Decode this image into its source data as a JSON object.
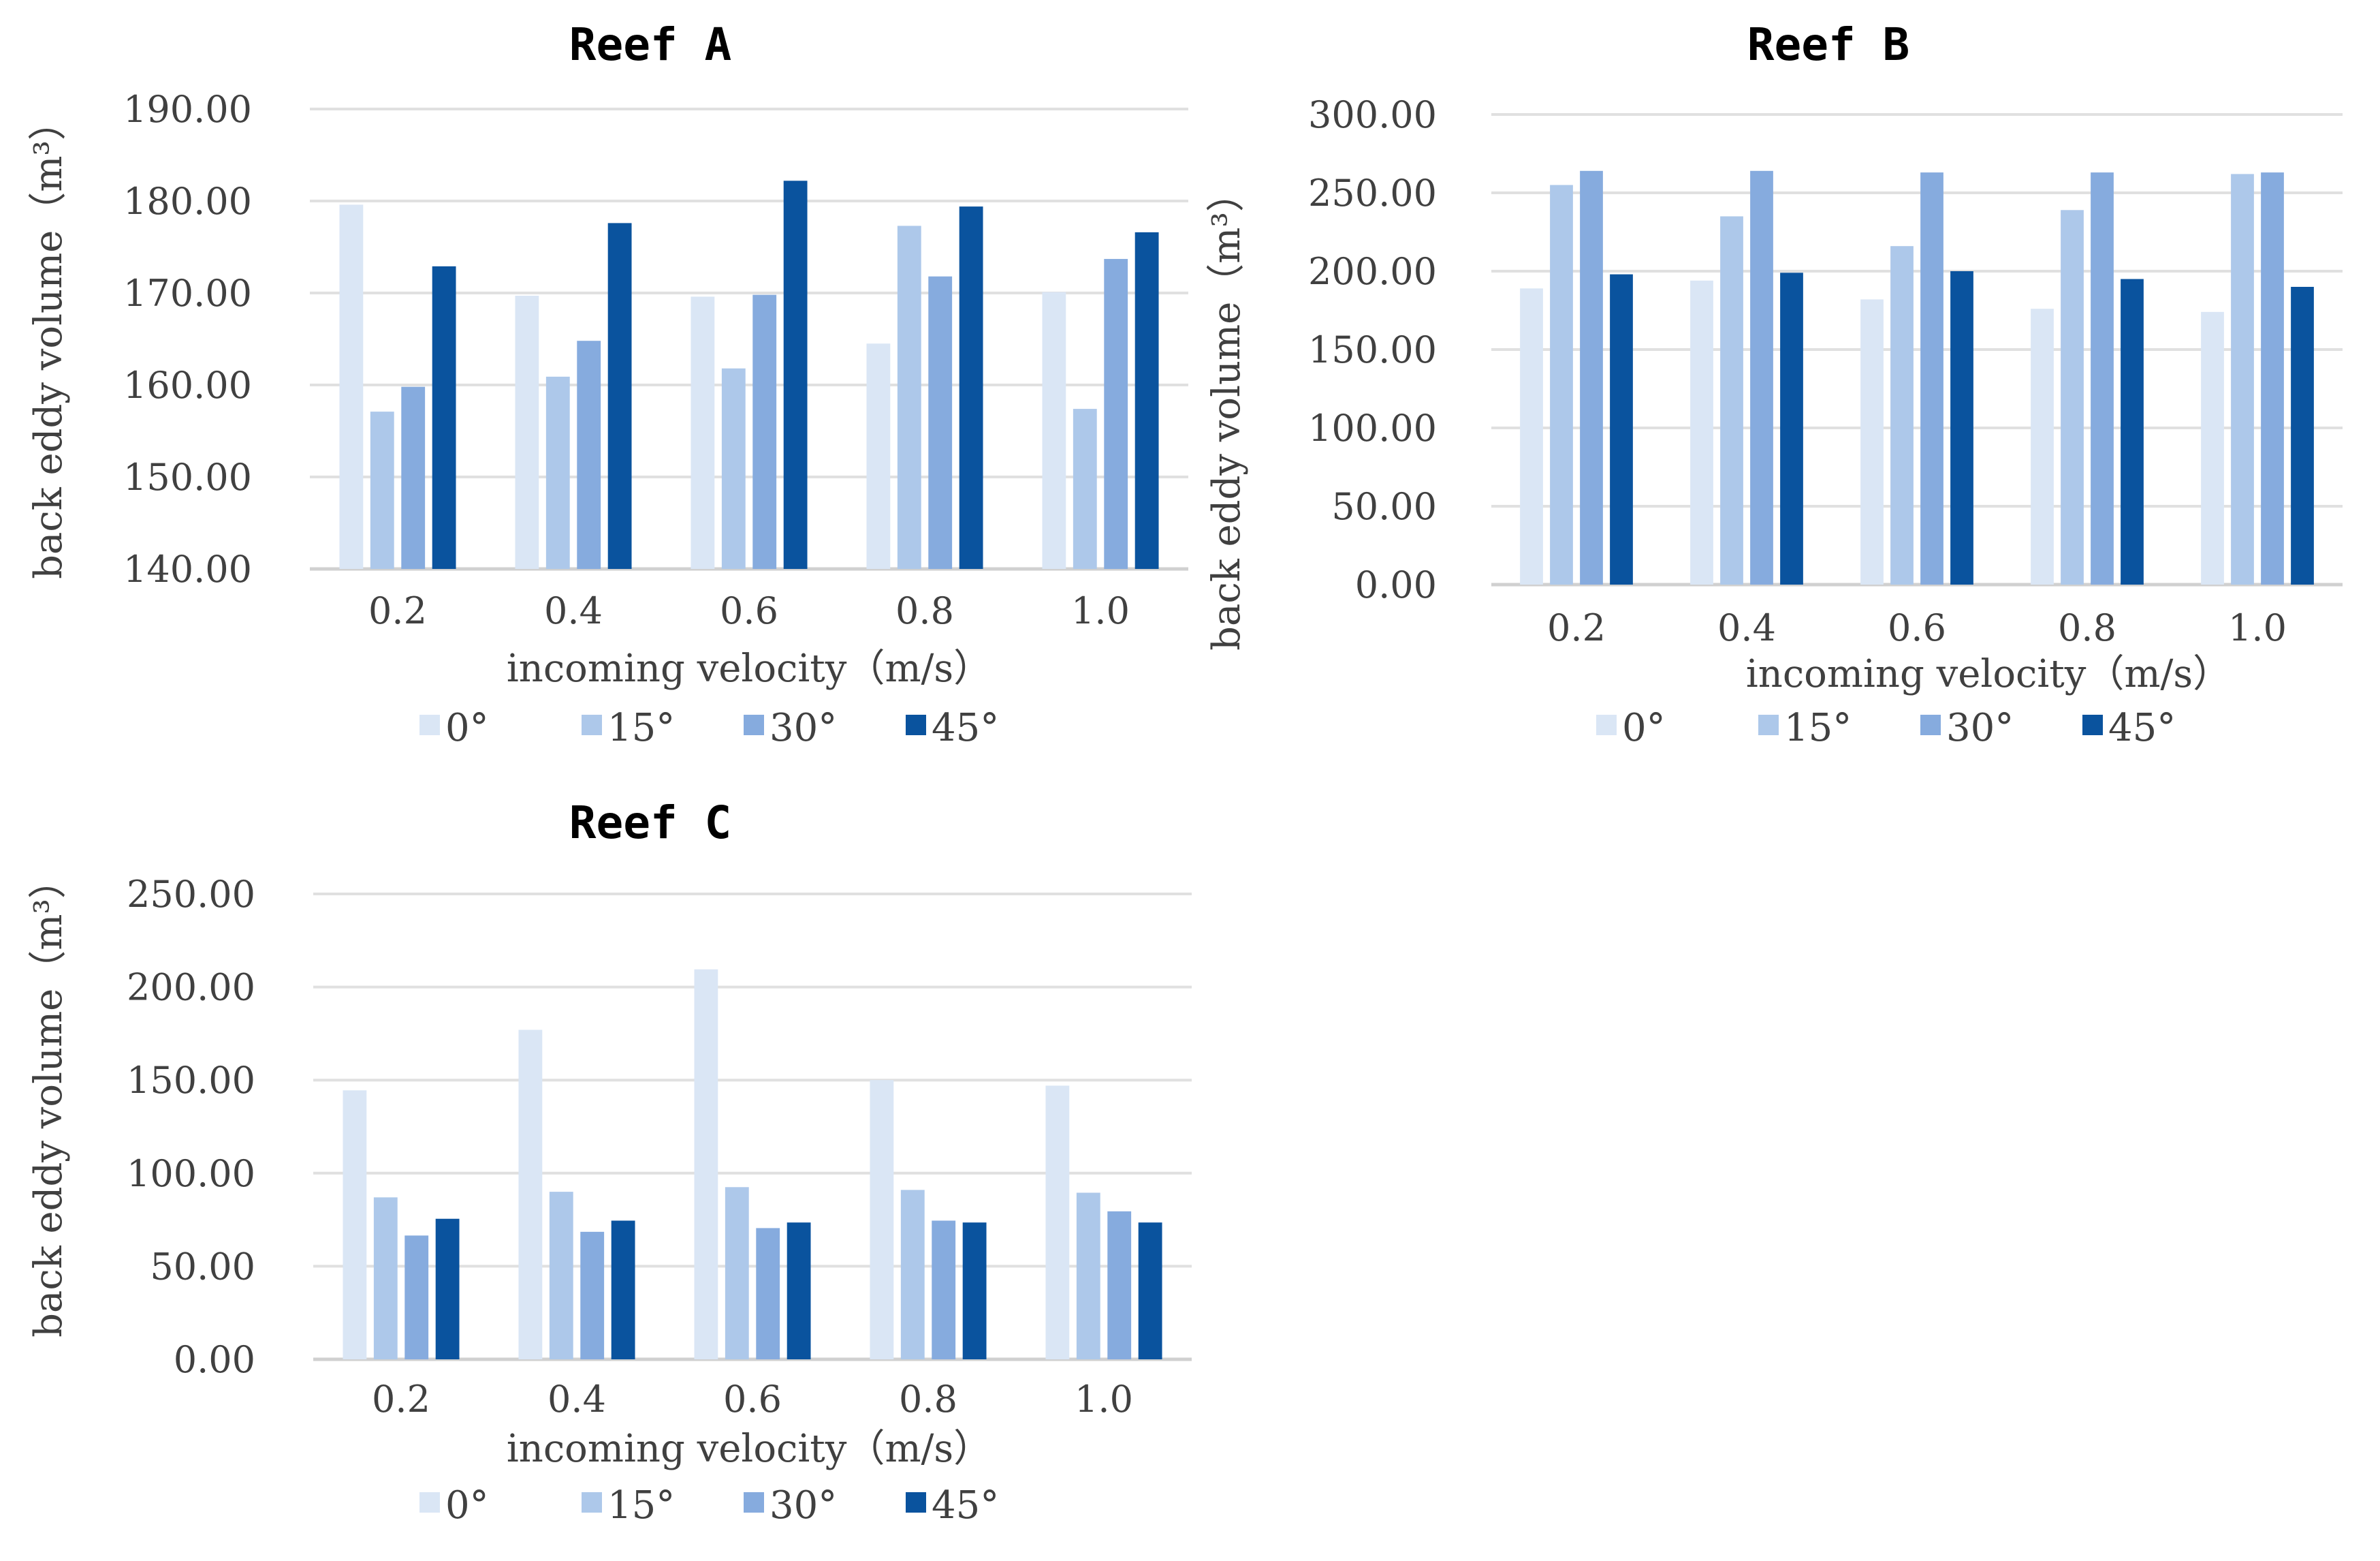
{
  "series_colors": [
    "#dae6f5",
    "#adc8ea",
    "#86abde",
    "#0a539e"
  ],
  "chart_data": [
    {
      "type": "bar",
      "title": "Reef A",
      "xlabel": "incoming velocity（m/s）",
      "ylabel": "back eddy volume（m³）",
      "categories": [
        "0.2",
        "0.4",
        "0.6",
        "0.8",
        "1.0"
      ],
      "ylim": [
        140,
        190
      ],
      "yticks": [
        "140.00",
        "150.00",
        "160.00",
        "170.00",
        "180.00",
        "190.00"
      ],
      "legend_position": "bottom",
      "grid": true,
      "series": [
        {
          "name": "0°",
          "values": [
            179.6,
            169.7,
            169.6,
            164.5,
            170.1
          ]
        },
        {
          "name": "15°",
          "values": [
            157.1,
            160.9,
            161.8,
            177.3,
            157.4
          ]
        },
        {
          "name": "30°",
          "values": [
            159.8,
            164.8,
            169.8,
            171.8,
            173.7
          ]
        },
        {
          "name": "45°",
          "values": [
            172.9,
            177.6,
            182.2,
            179.4,
            176.6
          ]
        }
      ]
    },
    {
      "type": "bar",
      "title": "Reef B",
      "xlabel": "incoming velocity（m/s）",
      "ylabel": "back eddy volume（m³）",
      "categories": [
        "0.2",
        "0.4",
        "0.6",
        "0.8",
        "1.0"
      ],
      "ylim": [
        0,
        300
      ],
      "yticks": [
        "0.00",
        "50.00",
        "100.00",
        "150.00",
        "200.00",
        "250.00",
        "300.00"
      ],
      "legend_position": "bottom",
      "grid": true,
      "series": [
        {
          "name": "0°",
          "values": [
            189,
            194,
            182,
            176,
            174
          ]
        },
        {
          "name": "15°",
          "values": [
            255,
            235,
            216,
            239,
            262
          ]
        },
        {
          "name": "30°",
          "values": [
            264,
            264,
            263,
            263,
            263
          ]
        },
        {
          "name": "45°",
          "values": [
            198,
            199,
            200,
            195,
            190
          ]
        }
      ]
    },
    {
      "type": "bar",
      "title": "Reef C",
      "xlabel": "incoming velocity（m/s）",
      "ylabel": "back eddy volume（m³）",
      "categories": [
        "0.2",
        "0.4",
        "0.6",
        "0.8",
        "1.0"
      ],
      "ylim": [
        0,
        250
      ],
      "yticks": [
        "0.00",
        "50.00",
        "100.00",
        "150.00",
        "200.00",
        "250.00"
      ],
      "legend_position": "bottom",
      "grid": true,
      "series": [
        {
          "name": "0°",
          "values": [
            144.5,
            177.0,
            209.5,
            150.0,
            147.0
          ]
        },
        {
          "name": "15°",
          "values": [
            87.0,
            90.0,
            92.5,
            91.0,
            89.5
          ]
        },
        {
          "name": "30°",
          "values": [
            66.5,
            68.5,
            70.5,
            74.5,
            79.5
          ]
        },
        {
          "name": "45°",
          "values": [
            75.5,
            74.5,
            73.5,
            73.5,
            73.5
          ]
        }
      ]
    }
  ]
}
